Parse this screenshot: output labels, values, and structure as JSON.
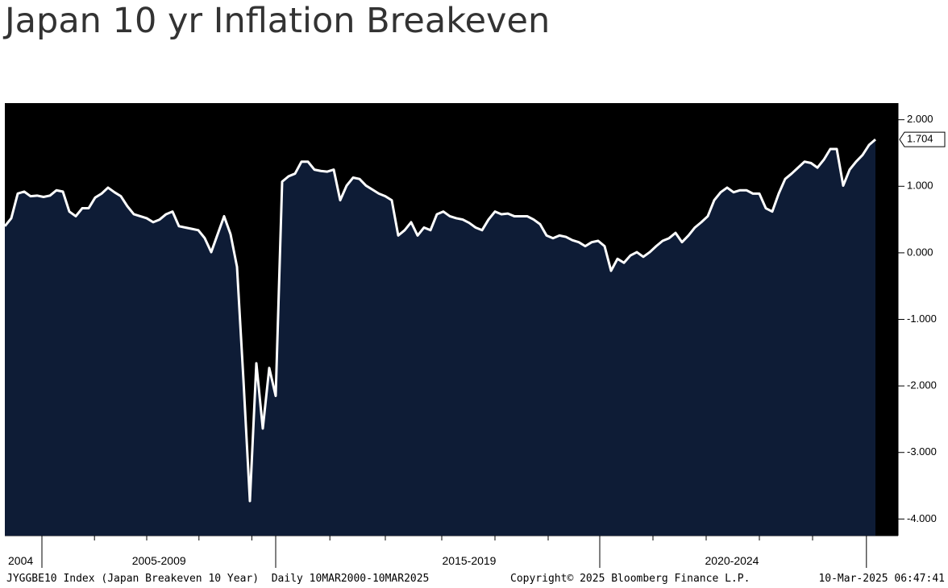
{
  "chart_data": {
    "type": "area",
    "title": "Japan 10 yr Inflation Breakeven",
    "series": [
      {
        "name": "JYGGBE10 Index",
        "color": "#ffffff",
        "fill": "#0e1c36",
        "values": [
          0.4,
          0.52,
          0.89,
          0.92,
          0.85,
          0.86,
          0.84,
          0.86,
          0.94,
          0.92,
          0.62,
          0.55,
          0.67,
          0.67,
          0.83,
          0.89,
          0.98,
          0.91,
          0.85,
          0.7,
          0.58,
          0.55,
          0.52,
          0.46,
          0.5,
          0.58,
          0.62,
          0.4,
          0.38,
          0.36,
          0.34,
          0.22,
          0.01,
          0.28,
          0.55,
          0.28,
          -0.21,
          -1.91,
          -3.73,
          -1.66,
          -2.64,
          -1.73,
          -2.15,
          1.07,
          1.15,
          1.19,
          1.37,
          1.37,
          1.25,
          1.23,
          1.22,
          1.25,
          0.79,
          1.01,
          1.13,
          1.11,
          1.01,
          0.95,
          0.89,
          0.85,
          0.79,
          0.26,
          0.34,
          0.46,
          0.26,
          0.38,
          0.34,
          0.58,
          0.62,
          0.55,
          0.52,
          0.5,
          0.45,
          0.38,
          0.34,
          0.5,
          0.62,
          0.58,
          0.59,
          0.55,
          0.55,
          0.55,
          0.5,
          0.43,
          0.26,
          0.22,
          0.26,
          0.24,
          0.19,
          0.16,
          0.1,
          0.16,
          0.18,
          0.1,
          -0.27,
          -0.09,
          -0.15,
          -0.04,
          0.01,
          -0.06,
          0.01,
          0.1,
          0.18,
          0.22,
          0.3,
          0.16,
          0.26,
          0.38,
          0.46,
          0.55,
          0.79,
          0.91,
          0.98,
          0.91,
          0.94,
          0.94,
          0.89,
          0.89,
          0.67,
          0.62,
          0.89,
          1.11,
          1.19,
          1.28,
          1.37,
          1.35,
          1.28,
          1.4,
          1.56,
          1.56,
          1.01,
          1.25,
          1.37,
          1.47,
          1.62,
          1.704
        ]
      }
    ],
    "xlim": [
      0,
      138.5
    ],
    "xticks": [
      5.75,
      42,
      92.25,
      133.6
    ],
    "xminor_ticks": [
      13.9,
      22,
      30.1,
      38.3,
      50.4,
      59,
      67.75,
      76,
      84.25,
      100.5,
      108.75,
      117,
      125.25
    ],
    "xlabels": [
      {
        "value": 0.5,
        "label": "2004"
      },
      {
        "value": 23.9,
        "label": "2005-2009"
      },
      {
        "value": 72,
        "label": "2015-2019"
      },
      {
        "value": 112.75,
        "label": "2020-2024"
      }
    ],
    "ylim": [
      -4.25,
      2.25
    ],
    "yticks": [
      {
        "value": 2,
        "label": "2.000"
      },
      {
        "value": 1,
        "label": "1.000"
      },
      {
        "value": 0,
        "label": "0.000"
      },
      {
        "value": -1,
        "label": "-1.000"
      },
      {
        "value": -2,
        "label": "-2.000"
      },
      {
        "value": -3,
        "label": "-3.000"
      },
      {
        "value": -4,
        "label": "-4.000"
      }
    ],
    "footer": [
      "JYGGBE10 Index (Japan Breakeven 10 Year)  Daily 10MAR2000-10MAR2025",
      "Copyright© 2025 Bloomberg Finance L.P.",
      "10-Mar-2025 06:47:41"
    ]
  }
}
